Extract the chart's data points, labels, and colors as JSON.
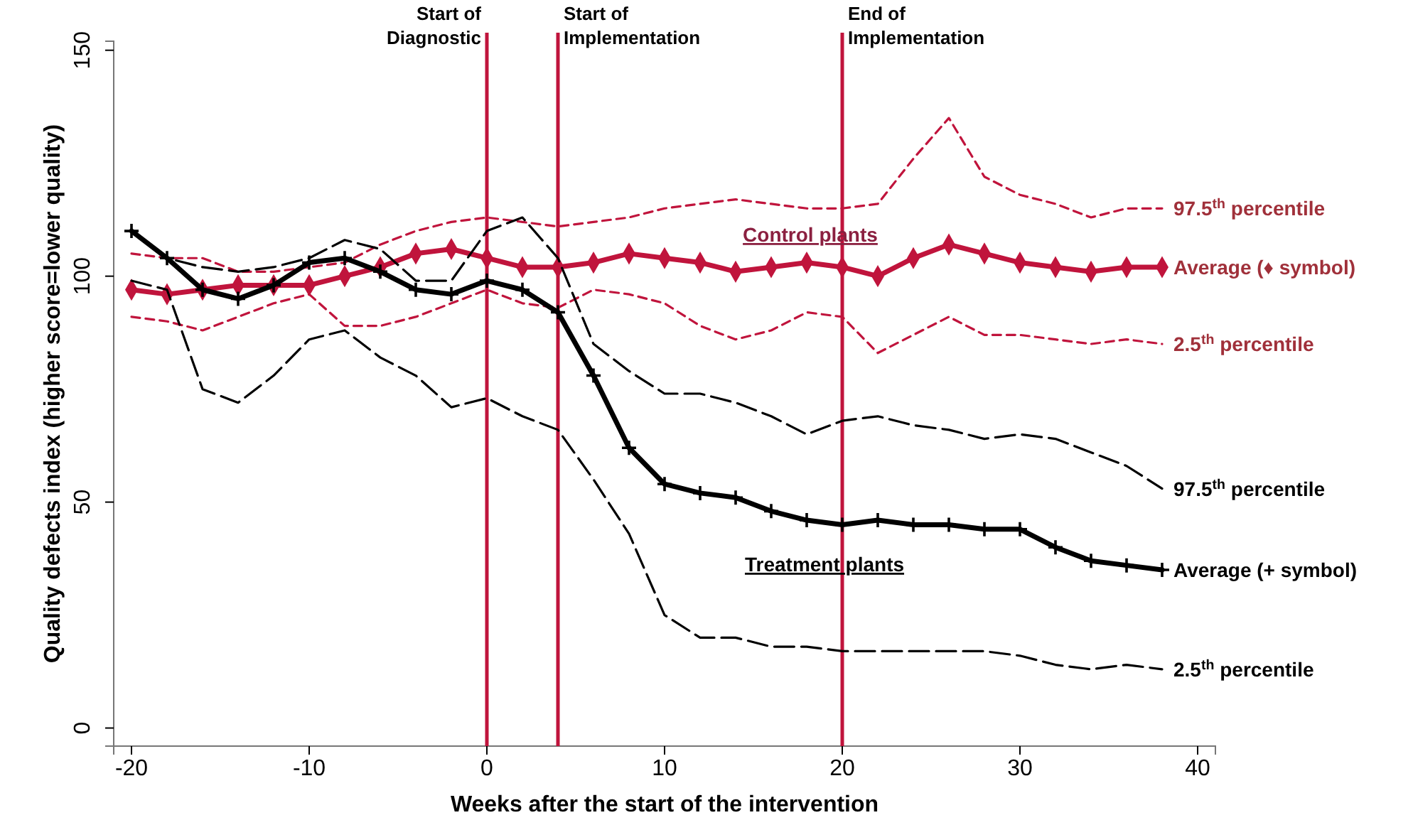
{
  "chart_data": {
    "type": "line",
    "xlabel": "Weeks after the start of the intervention",
    "ylabel": "Quality defects index (higher score=lower quality)",
    "x": [
      -20,
      -18,
      -16,
      -14,
      -12,
      -10,
      -8,
      -6,
      -4,
      -2,
      0,
      2,
      4,
      6,
      8,
      10,
      12,
      14,
      16,
      18,
      20,
      22,
      24,
      26,
      28,
      30,
      32,
      34,
      36,
      38
    ],
    "series": [
      {
        "name": "97.5$^{th}$ percentile",
        "color": "#c0143c",
        "line_style": "dashed",
        "marker": "none",
        "values": [
          105,
          104,
          104,
          101,
          101,
          102,
          103,
          107,
          110,
          112,
          113,
          112,
          111,
          112,
          113,
          115,
          116,
          117,
          116,
          115,
          115,
          116,
          126,
          135,
          122,
          118,
          116,
          113,
          115,
          115
        ]
      },
      {
        "name": "Average (♦ symbol)",
        "color": "#c0143c",
        "line_style": "solid",
        "marker": "diamond",
        "values": [
          97,
          96,
          97,
          98,
          98,
          98,
          100,
          102,
          105,
          106,
          104,
          102,
          102,
          103,
          105,
          104,
          103,
          101,
          102,
          103,
          102,
          100,
          104,
          107,
          105,
          103,
          102,
          101,
          102,
          102
        ]
      },
      {
        "name": "2.5$^{th}$ percentile",
        "color": "#c0143c",
        "line_style": "dashed",
        "marker": "none",
        "values": [
          91,
          90,
          88,
          91,
          94,
          96,
          89,
          89,
          91,
          94,
          97,
          94,
          93,
          97,
          96,
          94,
          89,
          86,
          88,
          92,
          91,
          83,
          87,
          91,
          87,
          87,
          86,
          85,
          86,
          85
        ]
      },
      {
        "name": "97.5$^{th}$ percentile",
        "color": "#000000",
        "line_style": "dashed",
        "marker": "none",
        "values": [
          110,
          104,
          102,
          101,
          102,
          104,
          108,
          106,
          99,
          99,
          110,
          113,
          104,
          85,
          79,
          74,
          74,
          72,
          69,
          65,
          68,
          69,
          67,
          66,
          64,
          65,
          64,
          61,
          58,
          53
        ]
      },
      {
        "name": "Average (+ symbol)",
        "color": "#000000",
        "line_style": "solid",
        "marker": "cross",
        "values": [
          110,
          104,
          97,
          95,
          98,
          103,
          104,
          101,
          97,
          96,
          99,
          97,
          92,
          78,
          62,
          54,
          52,
          51,
          48,
          46,
          45,
          46,
          45,
          45,
          44,
          44,
          40,
          37,
          36,
          35
        ]
      },
      {
        "name": "2.5$^{th}$ percentile",
        "color": "#000000",
        "line_style": "dashed",
        "marker": "none",
        "values": [
          99,
          97,
          75,
          72,
          78,
          86,
          88,
          82,
          78,
          71,
          73,
          69,
          66,
          55,
          43,
          25,
          20,
          20,
          18,
          18,
          17,
          17,
          17,
          17,
          17,
          16,
          14,
          13,
          14,
          13
        ]
      }
    ],
    "xlim": [
      -21,
      41
    ],
    "xticks": [
      -20,
      -10,
      0,
      10,
      20,
      30,
      40
    ],
    "ylim": [
      -4,
      152
    ],
    "yticks": [
      0,
      50,
      100,
      150
    ],
    "grid": false,
    "ref_lines": [
      {
        "axis": "x",
        "value": 0,
        "label": "Start of\nDiagnostic",
        "color": "#c0143c"
      },
      {
        "axis": "x",
        "value": 4,
        "label": "Start of\nImplementation",
        "color": "#c0143c"
      },
      {
        "axis": "x",
        "value": 20,
        "label": "End of\nImplementation",
        "color": "#c0143c"
      }
    ],
    "annotations": [
      "Control plants",
      "Treatment plants"
    ]
  }
}
